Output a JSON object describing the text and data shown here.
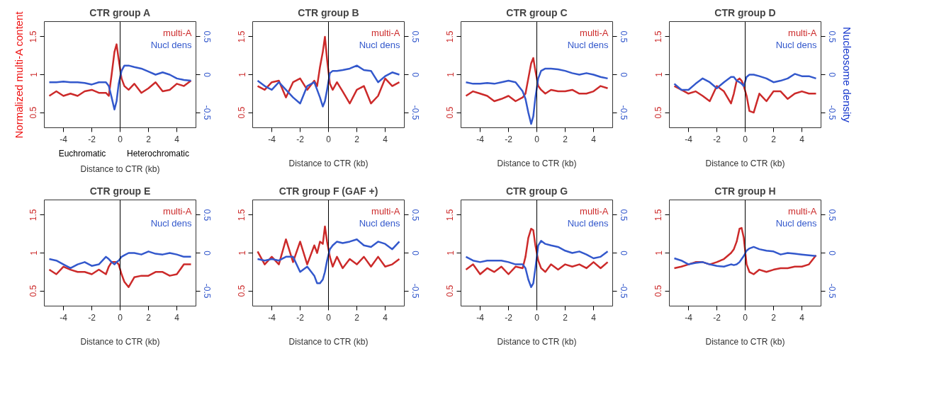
{
  "chart_data": [
    {
      "type": "line",
      "title": "CTR group A",
      "xlabel": "Distance to CTR (kb)",
      "ylabel": "Normalized multi-A content",
      "annotations": [
        "Euchromatic",
        "Heterochromatic"
      ],
      "legend": "top right",
      "xlim": [
        -5.35,
        5.35
      ],
      "xticks": [
        -4,
        -2,
        0,
        2,
        4
      ],
      "ylim": [
        0.3,
        1.7
      ],
      "yticks": [
        0.5,
        1,
        1.5
      ],
      "y2lim": [
        -0.7,
        0.7
      ],
      "y2ticks": [
        -0.5,
        0,
        0.5
      ],
      "ref_lines": [
        {
          "axis": "x",
          "value": 0,
          "color": "#000000"
        }
      ],
      "x": [
        -5,
        -4.5,
        -4,
        -3.5,
        -3,
        -2.5,
        -2,
        -1.5,
        -1,
        -0.8,
        -0.6,
        -0.4,
        -0.25,
        -0.1,
        0.1,
        0.3,
        0.6,
        1,
        1.5,
        2,
        2.5,
        3,
        3.5,
        4,
        4.5,
        5
      ],
      "series": [
        {
          "name": "multi-A",
          "color": "#cc2a2a",
          "values": [
            0.72,
            0.78,
            0.72,
            0.75,
            0.72,
            0.78,
            0.8,
            0.76,
            0.76,
            0.72,
            1.0,
            1.3,
            1.4,
            1.2,
            0.95,
            0.85,
            0.8,
            0.88,
            0.76,
            0.82,
            0.9,
            0.78,
            0.8,
            0.88,
            0.85,
            0.92
          ]
        },
        {
          "name": "Nucl dens",
          "color": "#3358cc",
          "axis": "y2",
          "values": [
            -0.1,
            -0.1,
            -0.09,
            -0.1,
            -0.1,
            -0.11,
            -0.13,
            -0.1,
            -0.1,
            -0.15,
            -0.3,
            -0.46,
            -0.35,
            -0.12,
            0.05,
            0.12,
            0.12,
            0.1,
            0.08,
            0.04,
            0.0,
            0.03,
            0.0,
            -0.05,
            -0.07,
            -0.08
          ]
        }
      ]
    },
    {
      "type": "line",
      "title": "CTR group B",
      "xlabel": "Distance to CTR (kb)",
      "legend": "top right",
      "xlim": [
        -5.35,
        5.35
      ],
      "xticks": [
        -4,
        -2,
        0,
        2,
        4
      ],
      "ylim": [
        0.3,
        1.7
      ],
      "yticks": [
        0.5,
        1,
        1.5
      ],
      "y2lim": [
        -0.7,
        0.7
      ],
      "y2ticks": [
        -0.5,
        0,
        0.5
      ],
      "ref_lines": [
        {
          "axis": "x",
          "value": 0,
          "color": "#000000"
        }
      ],
      "x": [
        -5,
        -4.5,
        -4,
        -3.5,
        -3,
        -2.5,
        -2,
        -1.5,
        -1,
        -0.8,
        -0.6,
        -0.4,
        -0.25,
        -0.1,
        0.1,
        0.3,
        0.6,
        1,
        1.5,
        2,
        2.5,
        3,
        3.5,
        4,
        4.5,
        5
      ],
      "series": [
        {
          "name": "multi-A",
          "color": "#cc2a2a",
          "values": [
            0.85,
            0.8,
            0.9,
            0.92,
            0.7,
            0.9,
            0.95,
            0.8,
            0.92,
            0.85,
            1.1,
            1.3,
            1.5,
            1.2,
            0.88,
            0.8,
            0.9,
            0.78,
            0.62,
            0.8,
            0.85,
            0.62,
            0.72,
            0.95,
            0.85,
            0.9
          ]
        },
        {
          "name": "Nucl dens",
          "color": "#3358cc",
          "axis": "y2",
          "values": [
            -0.08,
            -0.15,
            -0.2,
            -0.1,
            -0.2,
            -0.3,
            -0.38,
            -0.15,
            -0.1,
            -0.2,
            -0.3,
            -0.42,
            -0.35,
            -0.2,
            0.02,
            0.05,
            0.05,
            0.06,
            0.08,
            0.12,
            0.06,
            0.05,
            -0.1,
            -0.02,
            0.03,
            0.0
          ]
        }
      ]
    },
    {
      "type": "line",
      "title": "CTR group C",
      "xlabel": "Distance to CTR (kb)",
      "legend": "top right",
      "xlim": [
        -5.35,
        5.35
      ],
      "xticks": [
        -4,
        -2,
        0,
        2,
        4
      ],
      "ylim": [
        0.3,
        1.7
      ],
      "yticks": [
        0.5,
        1,
        1.5
      ],
      "y2lim": [
        -0.7,
        0.7
      ],
      "y2ticks": [
        -0.5,
        0,
        0.5
      ],
      "ref_lines": [
        {
          "axis": "x",
          "value": 0,
          "color": "#000000"
        }
      ],
      "x": [
        -5,
        -4.5,
        -4,
        -3.5,
        -3,
        -2.5,
        -2,
        -1.5,
        -1,
        -0.8,
        -0.6,
        -0.4,
        -0.25,
        -0.1,
        0.1,
        0.3,
        0.6,
        1,
        1.5,
        2,
        2.5,
        3,
        3.5,
        4,
        4.5,
        5
      ],
      "series": [
        {
          "name": "multi-A",
          "color": "#cc2a2a",
          "values": [
            0.72,
            0.78,
            0.75,
            0.72,
            0.65,
            0.68,
            0.72,
            0.65,
            0.7,
            0.75,
            0.95,
            1.15,
            1.22,
            1.05,
            0.85,
            0.8,
            0.75,
            0.8,
            0.78,
            0.78,
            0.8,
            0.75,
            0.75,
            0.78,
            0.85,
            0.82
          ]
        },
        {
          "name": "Nucl dens",
          "color": "#3358cc",
          "axis": "y2",
          "values": [
            -0.1,
            -0.12,
            -0.12,
            -0.11,
            -0.12,
            -0.1,
            -0.08,
            -0.1,
            -0.22,
            -0.32,
            -0.5,
            -0.65,
            -0.55,
            -0.3,
            -0.05,
            0.05,
            0.08,
            0.08,
            0.07,
            0.05,
            0.02,
            0.0,
            0.02,
            0.0,
            -0.03,
            -0.05
          ]
        }
      ]
    },
    {
      "type": "line",
      "title": "CTR group D",
      "xlabel": "Distance to CTR (kb)",
      "y2label": "Nucleosome density",
      "legend": "top right",
      "xlim": [
        -5.35,
        5.35
      ],
      "xticks": [
        -4,
        -2,
        0,
        2,
        4
      ],
      "ylim": [
        0.3,
        1.7
      ],
      "yticks": [
        0.5,
        1,
        1.5
      ],
      "y2lim": [
        -0.7,
        0.7
      ],
      "y2ticks": [
        -0.5,
        0,
        0.5
      ],
      "ref_lines": [
        {
          "axis": "x",
          "value": 0,
          "color": "#000000"
        }
      ],
      "x": [
        -5,
        -4.5,
        -4,
        -3.5,
        -3,
        -2.5,
        -2,
        -1.5,
        -1,
        -0.8,
        -0.6,
        -0.4,
        -0.25,
        -0.1,
        0.1,
        0.3,
        0.6,
        1,
        1.5,
        2,
        2.5,
        3,
        3.5,
        4,
        4.5,
        5
      ],
      "series": [
        {
          "name": "multi-A",
          "color": "#cc2a2a",
          "values": [
            0.85,
            0.8,
            0.75,
            0.78,
            0.72,
            0.65,
            0.85,
            0.78,
            0.62,
            0.75,
            0.92,
            0.95,
            0.92,
            0.85,
            0.72,
            0.52,
            0.5,
            0.75,
            0.65,
            0.78,
            0.78,
            0.68,
            0.75,
            0.78,
            0.75,
            0.75
          ]
        },
        {
          "name": "Nucl dens",
          "color": "#3358cc",
          "axis": "y2",
          "values": [
            -0.12,
            -0.2,
            -0.2,
            -0.12,
            -0.05,
            -0.1,
            -0.18,
            -0.1,
            -0.03,
            -0.03,
            -0.08,
            -0.1,
            -0.12,
            -0.15,
            -0.03,
            0.0,
            0.0,
            -0.02,
            -0.05,
            -0.1,
            -0.08,
            -0.05,
            0.01,
            -0.02,
            -0.02,
            -0.05
          ]
        }
      ]
    },
    {
      "type": "line",
      "title": "CTR group E",
      "xlabel": "Distance to CTR (kb)",
      "legend": "top right",
      "xlim": [
        -5.35,
        5.35
      ],
      "xticks": [
        -4,
        -2,
        0,
        2,
        4
      ],
      "ylim": [
        0.3,
        1.7
      ],
      "yticks": [
        0.5,
        1,
        1.5
      ],
      "y2lim": [
        -0.7,
        0.7
      ],
      "y2ticks": [
        -0.5,
        0,
        0.5
      ],
      "ref_lines": [
        {
          "axis": "x",
          "value": 0,
          "color": "#000000"
        }
      ],
      "x": [
        -5,
        -4.5,
        -4,
        -3.5,
        -3,
        -2.5,
        -2,
        -1.5,
        -1,
        -0.8,
        -0.6,
        -0.4,
        -0.25,
        -0.1,
        0.1,
        0.3,
        0.6,
        1,
        1.5,
        2,
        2.5,
        3,
        3.5,
        4,
        4.5,
        5
      ],
      "series": [
        {
          "name": "multi-A",
          "color": "#cc2a2a",
          "values": [
            0.78,
            0.72,
            0.82,
            0.78,
            0.75,
            0.75,
            0.72,
            0.78,
            0.72,
            0.82,
            0.88,
            0.88,
            0.88,
            0.85,
            0.72,
            0.62,
            0.55,
            0.68,
            0.7,
            0.7,
            0.75,
            0.75,
            0.7,
            0.72,
            0.85,
            0.85
          ]
        },
        {
          "name": "Nucl dens",
          "color": "#3358cc",
          "axis": "y2",
          "values": [
            -0.08,
            -0.1,
            -0.15,
            -0.2,
            -0.15,
            -0.12,
            -0.17,
            -0.15,
            -0.05,
            -0.08,
            -0.12,
            -0.15,
            -0.12,
            -0.1,
            -0.05,
            -0.03,
            0.0,
            0.0,
            -0.02,
            0.02,
            -0.01,
            -0.02,
            0.0,
            -0.02,
            -0.05,
            -0.05
          ]
        }
      ]
    },
    {
      "type": "line",
      "title": "CTR group F (GAF +)",
      "xlabel": "Distance to CTR (kb)",
      "legend": "top right",
      "xlim": [
        -5.35,
        5.35
      ],
      "xticks": [
        -4,
        -2,
        0,
        2,
        4
      ],
      "ylim": [
        0.3,
        1.7
      ],
      "yticks": [
        0.5,
        1,
        1.5
      ],
      "y2lim": [
        -0.7,
        0.7
      ],
      "y2ticks": [
        -0.5,
        0,
        0.5
      ],
      "ref_lines": [
        {
          "axis": "x",
          "value": 0,
          "color": "#000000"
        }
      ],
      "x": [
        -5,
        -4.5,
        -4,
        -3.5,
        -3,
        -2.5,
        -2,
        -1.5,
        -1,
        -0.8,
        -0.6,
        -0.4,
        -0.25,
        -0.1,
        0.1,
        0.3,
        0.6,
        1,
        1.5,
        2,
        2.5,
        3,
        3.5,
        4,
        4.5,
        5
      ],
      "series": [
        {
          "name": "multi-A",
          "color": "#cc2a2a",
          "values": [
            1.02,
            0.85,
            0.95,
            0.85,
            1.18,
            0.88,
            1.15,
            0.85,
            1.1,
            1.0,
            1.15,
            1.12,
            1.35,
            1.15,
            0.95,
            0.82,
            0.95,
            0.8,
            0.92,
            0.85,
            0.95,
            0.82,
            0.95,
            0.82,
            0.85,
            0.92
          ]
        },
        {
          "name": "Nucl dens",
          "color": "#3358cc",
          "axis": "y2",
          "values": [
            -0.08,
            -0.1,
            -0.08,
            -0.1,
            -0.05,
            -0.05,
            -0.25,
            -0.18,
            -0.3,
            -0.4,
            -0.4,
            -0.35,
            -0.25,
            -0.1,
            0.05,
            0.1,
            0.15,
            0.13,
            0.15,
            0.18,
            0.1,
            0.08,
            0.15,
            0.12,
            0.05,
            0.15
          ]
        }
      ]
    },
    {
      "type": "line",
      "title": "CTR group G",
      "xlabel": "Distance to CTR (kb)",
      "legend": "top right",
      "xlim": [
        -5.35,
        5.35
      ],
      "xticks": [
        -4,
        -2,
        0,
        2,
        4
      ],
      "ylim": [
        0.3,
        1.7
      ],
      "yticks": [
        0.5,
        1,
        1.5
      ],
      "y2lim": [
        -0.7,
        0.7
      ],
      "y2ticks": [
        -0.5,
        0,
        0.5
      ],
      "ref_lines": [
        {
          "axis": "x",
          "value": 0,
          "color": "#000000"
        }
      ],
      "x": [
        -5,
        -4.5,
        -4,
        -3.5,
        -3,
        -2.5,
        -2,
        -1.5,
        -1,
        -0.8,
        -0.6,
        -0.4,
        -0.25,
        -0.1,
        0.1,
        0.3,
        0.6,
        1,
        1.5,
        2,
        2.5,
        3,
        3.5,
        4,
        4.5,
        5
      ],
      "series": [
        {
          "name": "multi-A",
          "color": "#cc2a2a",
          "values": [
            0.78,
            0.85,
            0.72,
            0.8,
            0.75,
            0.82,
            0.72,
            0.82,
            0.8,
            0.95,
            1.2,
            1.32,
            1.3,
            1.1,
            0.9,
            0.8,
            0.75,
            0.85,
            0.78,
            0.85,
            0.82,
            0.85,
            0.8,
            0.88,
            0.8,
            0.88
          ]
        },
        {
          "name": "Nucl dens",
          "color": "#3358cc",
          "axis": "y2",
          "values": [
            -0.05,
            -0.1,
            -0.12,
            -0.1,
            -0.1,
            -0.1,
            -0.12,
            -0.15,
            -0.15,
            -0.2,
            -0.35,
            -0.45,
            -0.4,
            -0.2,
            0.1,
            0.16,
            0.12,
            0.1,
            0.08,
            0.03,
            0.0,
            0.02,
            -0.02,
            -0.07,
            -0.05,
            0.02
          ]
        }
      ]
    },
    {
      "type": "line",
      "title": "CTR group H",
      "xlabel": "Distance to CTR (kb)",
      "legend": "top right",
      "xlim": [
        -5.35,
        5.35
      ],
      "xticks": [
        -4,
        -2,
        0,
        2,
        4
      ],
      "ylim": [
        0.3,
        1.7
      ],
      "yticks": [
        0.5,
        1,
        1.5
      ],
      "y2lim": [
        -0.7,
        0.7
      ],
      "y2ticks": [
        -0.5,
        0,
        0.5
      ],
      "ref_lines": [
        {
          "axis": "x",
          "value": 0,
          "color": "#000000"
        }
      ],
      "x": [
        -5,
        -4.5,
        -4,
        -3.5,
        -3,
        -2.5,
        -2,
        -1.5,
        -1,
        -0.8,
        -0.6,
        -0.4,
        -0.25,
        -0.1,
        0.1,
        0.3,
        0.6,
        1,
        1.5,
        2,
        2.5,
        3,
        3.5,
        4,
        4.5,
        5
      ],
      "series": [
        {
          "name": "multi-A",
          "color": "#cc2a2a",
          "values": [
            0.8,
            0.82,
            0.85,
            0.88,
            0.88,
            0.85,
            0.88,
            0.92,
            1.0,
            1.05,
            1.15,
            1.32,
            1.33,
            1.2,
            0.85,
            0.75,
            0.72,
            0.78,
            0.75,
            0.78,
            0.8,
            0.8,
            0.82,
            0.82,
            0.85,
            0.97
          ]
        },
        {
          "name": "Nucl dens",
          "color": "#3358cc",
          "axis": "y2",
          "values": [
            -0.07,
            -0.1,
            -0.15,
            -0.13,
            -0.12,
            -0.15,
            -0.17,
            -0.18,
            -0.15,
            -0.16,
            -0.15,
            -0.12,
            -0.08,
            -0.04,
            0.03,
            0.06,
            0.08,
            0.05,
            0.03,
            0.02,
            -0.02,
            0.0,
            -0.01,
            -0.02,
            -0.03,
            -0.04
          ]
        }
      ]
    }
  ]
}
